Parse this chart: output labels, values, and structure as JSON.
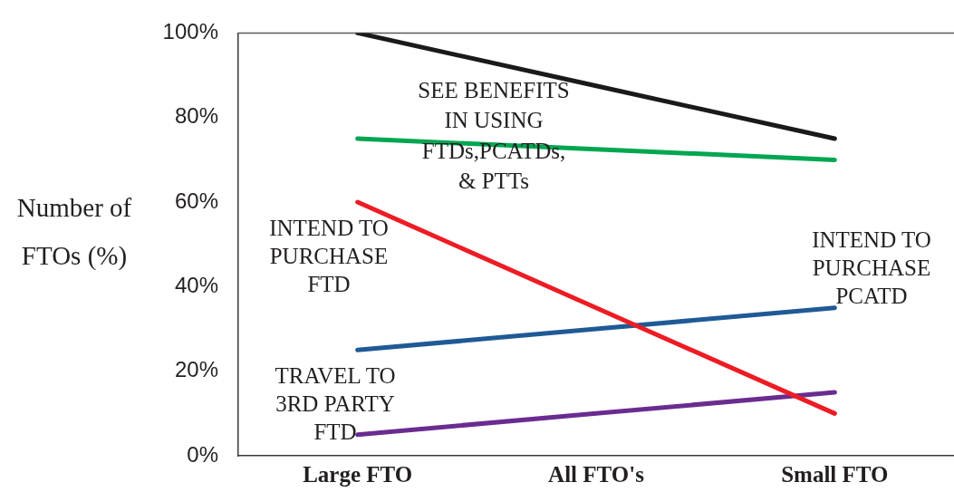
{
  "chart_data": {
    "type": "line",
    "ylabel": "Number of FTOs (%)",
    "categories": [
      "Large FTO",
      "All FTO's",
      "Small FTO"
    ],
    "series": [
      {
        "color": "#1a1a1a",
        "values": [
          100,
          87.5,
          75
        ]
      },
      {
        "name": "SEE BENEFITS IN USING FTDs,PCATDs, & PTTs",
        "color": "#00a650",
        "values": [
          75,
          72.5,
          70
        ]
      },
      {
        "name": "INTEND TO PURCHASE FTD",
        "color": "#ed1c24",
        "values": [
          60,
          35,
          10
        ]
      },
      {
        "name": "INTEND TO PURCHASE PCATD",
        "color": "#1f5a96",
        "values": [
          25,
          30,
          35
        ]
      },
      {
        "name": "TRAVEL TO 3RD PARTY FTD",
        "color": "#6a2c91",
        "values": [
          5,
          10,
          15
        ]
      }
    ],
    "ylim": [
      0,
      100
    ],
    "yticks": [
      {
        "value": 0,
        "label": "0%"
      },
      {
        "value": 20,
        "label": "20%"
      },
      {
        "value": 40,
        "label": "40%"
      },
      {
        "value": 60,
        "label": "60%"
      },
      {
        "value": 80,
        "label": "80%"
      },
      {
        "value": 100,
        "label": "100%"
      }
    ],
    "marker": "none",
    "line_style": "solid"
  }
}
